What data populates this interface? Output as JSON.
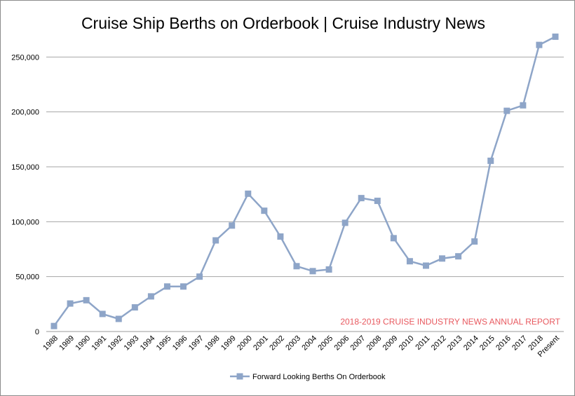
{
  "chart_data": {
    "type": "line",
    "title": "Cruise Ship Berths on Orderbook | Cruise Industry News",
    "xlabel": "",
    "ylabel": "",
    "categories": [
      "1988",
      "1989",
      "1990",
      "1991",
      "1992",
      "1993",
      "1994",
      "1995",
      "1996",
      "1997",
      "1998",
      "1999",
      "2000",
      "2001",
      "2002",
      "2003",
      "2004",
      "2005",
      "2006",
      "2007",
      "2008",
      "2009",
      "2010",
      "2011",
      "2012",
      "2013",
      "2014",
      "2015",
      "2016",
      "2017",
      "2018",
      "Present"
    ],
    "series": [
      {
        "name": "Forward Looking Berths On Orderbook",
        "color": "#8ea5c8",
        "values": [
          5000,
          25500,
          28500,
          16000,
          11500,
          22000,
          32000,
          41000,
          41000,
          50000,
          83000,
          96500,
          125500,
          110000,
          86500,
          59500,
          55000,
          56500,
          99000,
          121500,
          119000,
          85000,
          64000,
          60000,
          66500,
          68500,
          82000,
          155500,
          201000,
          206000,
          261000,
          268500
        ]
      }
    ],
    "ylim": [
      0,
      270000
    ],
    "yticks": [
      0,
      50000,
      100000,
      150000,
      200000,
      250000
    ],
    "ytick_labels": [
      "0",
      "50,000",
      "100,000",
      "150,000",
      "200,000",
      "250,000"
    ],
    "grid": "horizontal",
    "legend_position": "bottom",
    "annotation": "2018-2019 CRUISE INDUSTRY NEWS ANNUAL REPORT",
    "annotation_color": "#e8595f"
  }
}
